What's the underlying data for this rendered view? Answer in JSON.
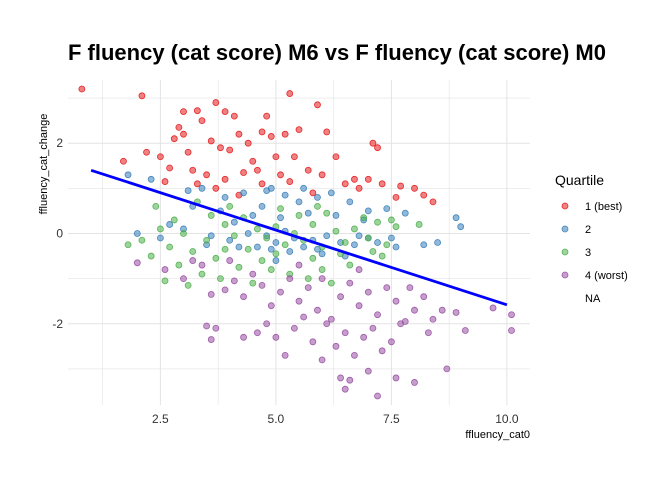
{
  "chart_data": {
    "type": "scatter",
    "title": "F fluency (cat score) M6 vs F fluency (cat score) M0",
    "xlabel": "ffluency_cat0",
    "ylabel": "ffluency_cat_change",
    "xlim": [
      0.5,
      10.5
    ],
    "ylim": [
      -3.8,
      3.4
    ],
    "xticks": [
      2.5,
      5.0,
      7.5,
      10.0
    ],
    "xtick_labels": [
      "2.5",
      "5.0",
      "7.5",
      "10.0"
    ],
    "yticks": [
      -2,
      0,
      2
    ],
    "ytick_labels": [
      "-2",
      "0",
      "2"
    ],
    "grid": true,
    "legend": {
      "title": "Quartile",
      "position": "right",
      "entries": [
        {
          "label": "1 (best)",
          "color": "#E41A1C"
        },
        {
          "label": "2",
          "color": "#377EB8"
        },
        {
          "label": "3",
          "color": "#4DAF4A"
        },
        {
          "label": "4 (worst)",
          "color": "#984EA3"
        },
        {
          "label": "NA",
          "color": null
        }
      ]
    },
    "trend_line": {
      "x": [
        1.0,
        10.0
      ],
      "y": [
        1.4,
        -1.58
      ],
      "color": "#0000FF"
    },
    "series": [
      {
        "name": "1 (best)",
        "color": "#E41A1C",
        "points": [
          [
            0.8,
            3.2
          ],
          [
            2.1,
            3.05
          ],
          [
            3.0,
            2.7
          ],
          [
            3.3,
            2.72
          ],
          [
            3.7,
            2.9
          ],
          [
            3.9,
            2.7
          ],
          [
            4.1,
            2.6
          ],
          [
            5.3,
            3.1
          ],
          [
            5.9,
            2.85
          ],
          [
            4.8,
            2.6
          ],
          [
            2.9,
            2.35
          ],
          [
            3.4,
            2.5
          ],
          [
            3.0,
            2.2
          ],
          [
            2.8,
            2.1
          ],
          [
            3.6,
            2.05
          ],
          [
            4.2,
            2.2
          ],
          [
            4.4,
            2.0
          ],
          [
            4.7,
            2.25
          ],
          [
            4.9,
            2.15
          ],
          [
            5.2,
            2.2
          ],
          [
            5.5,
            2.3
          ],
          [
            6.1,
            2.25
          ],
          [
            1.7,
            1.6
          ],
          [
            2.2,
            1.8
          ],
          [
            2.5,
            1.7
          ],
          [
            3.1,
            1.8
          ],
          [
            3.8,
            1.9
          ],
          [
            4.0,
            1.85
          ],
          [
            4.5,
            1.6
          ],
          [
            5.0,
            1.7
          ],
          [
            5.4,
            1.7
          ],
          [
            6.3,
            1.7
          ],
          [
            2.7,
            1.45
          ],
          [
            3.2,
            1.4
          ],
          [
            3.5,
            1.3
          ],
          [
            4.3,
            1.35
          ],
          [
            4.6,
            1.4
          ],
          [
            5.1,
            1.3
          ],
          [
            5.7,
            1.4
          ],
          [
            6.0,
            1.3
          ],
          [
            2.6,
            1.15
          ],
          [
            3.3,
            1.1
          ],
          [
            3.9,
            1.2
          ],
          [
            4.7,
            1.1
          ],
          [
            5.3,
            1.15
          ],
          [
            6.5,
            1.1
          ],
          [
            6.7,
            1.2
          ],
          [
            7.0,
            1.2
          ],
          [
            7.3,
            1.1
          ],
          [
            7.7,
            1.05
          ],
          [
            8.0,
            1.0
          ],
          [
            8.2,
            0.85
          ],
          [
            7.6,
            0.8
          ],
          [
            7.2,
            1.9
          ],
          [
            8.4,
            0.7
          ],
          [
            7.1,
            2.0
          ],
          [
            6.8,
            1.0
          ],
          [
            5.8,
            0.9
          ],
          [
            4.2,
            0.85
          ],
          [
            3.7,
            1.0
          ]
        ]
      },
      {
        "name": "2",
        "color": "#377EB8",
        "points": [
          [
            1.8,
            1.3
          ],
          [
            2.3,
            1.2
          ],
          [
            3.1,
            0.95
          ],
          [
            3.4,
            1.0
          ],
          [
            3.9,
            0.8
          ],
          [
            4.3,
            0.9
          ],
          [
            4.9,
            1.0
          ],
          [
            5.2,
            0.85
          ],
          [
            5.6,
            1.0
          ],
          [
            5.9,
            0.8
          ],
          [
            6.2,
            0.9
          ],
          [
            6.6,
            0.7
          ],
          [
            7.0,
            0.5
          ],
          [
            7.4,
            0.55
          ],
          [
            7.8,
            0.45
          ],
          [
            8.9,
            0.35
          ],
          [
            9.0,
            0.15
          ],
          [
            2.0,
            0.0
          ],
          [
            2.5,
            -0.1
          ],
          [
            3.0,
            0.1
          ],
          [
            3.6,
            -0.05
          ],
          [
            4.0,
            -0.15
          ],
          [
            4.4,
            0.0
          ],
          [
            4.8,
            -0.05
          ],
          [
            5.0,
            -0.2
          ],
          [
            5.2,
            0.05
          ],
          [
            5.4,
            -0.1
          ],
          [
            5.8,
            -0.15
          ],
          [
            6.1,
            -0.05
          ],
          [
            6.4,
            -0.2
          ],
          [
            6.7,
            -0.25
          ],
          [
            7.0,
            -0.1
          ],
          [
            7.2,
            -0.2
          ],
          [
            4.6,
            -0.3
          ],
          [
            4.9,
            -0.35
          ],
          [
            5.3,
            -0.4
          ],
          [
            5.6,
            -0.3
          ],
          [
            6.0,
            -0.45
          ],
          [
            6.5,
            -0.5
          ],
          [
            7.5,
            -0.1
          ],
          [
            8.2,
            -0.25
          ],
          [
            3.2,
            0.6
          ],
          [
            3.8,
            0.5
          ],
          [
            4.5,
            0.4
          ],
          [
            5.1,
            0.35
          ],
          [
            5.7,
            0.45
          ],
          [
            6.3,
            0.4
          ],
          [
            2.7,
            0.2
          ],
          [
            4.1,
            0.25
          ],
          [
            4.7,
            0.6
          ],
          [
            5.5,
            0.7
          ],
          [
            6.9,
            0.3
          ],
          [
            3.5,
            -0.25
          ],
          [
            4.2,
            -0.3
          ],
          [
            5.9,
            -0.35
          ],
          [
            6.8,
            -0.05
          ],
          [
            7.6,
            -0.3
          ],
          [
            8.5,
            -0.2
          ],
          [
            4.8,
            0.95
          ],
          [
            5.0,
            -0.6
          ]
        ]
      },
      {
        "name": "3",
        "color": "#4DAF4A",
        "points": [
          [
            1.8,
            -0.25
          ],
          [
            2.1,
            -0.15
          ],
          [
            2.5,
            0.1
          ],
          [
            2.7,
            -0.3
          ],
          [
            3.0,
            0.0
          ],
          [
            3.2,
            -0.4
          ],
          [
            3.5,
            -0.15
          ],
          [
            3.9,
            0.2
          ],
          [
            4.1,
            -0.05
          ],
          [
            4.4,
            -0.35
          ],
          [
            4.6,
            0.1
          ],
          [
            4.8,
            -0.1
          ],
          [
            5.0,
            0.15
          ],
          [
            5.2,
            -0.25
          ],
          [
            5.4,
            0.0
          ],
          [
            5.6,
            -0.15
          ],
          [
            5.8,
            0.2
          ],
          [
            6.0,
            -0.3
          ],
          [
            6.3,
            0.05
          ],
          [
            6.5,
            -0.2
          ],
          [
            6.7,
            0.1
          ],
          [
            7.0,
            -0.1
          ],
          [
            7.2,
            0.25
          ],
          [
            7.4,
            -0.25
          ],
          [
            7.6,
            0.15
          ],
          [
            8.1,
            0.2
          ],
          [
            2.9,
            -0.7
          ],
          [
            3.4,
            -0.9
          ],
          [
            3.8,
            -1.0
          ],
          [
            4.2,
            -0.75
          ],
          [
            4.5,
            -1.1
          ],
          [
            4.9,
            -0.8
          ],
          [
            5.3,
            -0.9
          ],
          [
            5.7,
            -1.0
          ],
          [
            6.0,
            -0.8
          ],
          [
            6.6,
            -0.7
          ],
          [
            2.6,
            -1.05
          ],
          [
            3.1,
            -1.15
          ],
          [
            2.8,
            0.3
          ],
          [
            3.6,
            0.4
          ],
          [
            4.3,
            0.35
          ],
          [
            5.5,
            0.4
          ],
          [
            6.1,
            0.45
          ],
          [
            6.9,
            0.35
          ],
          [
            7.5,
            0.3
          ],
          [
            2.4,
            0.6
          ],
          [
            3.3,
            0.7
          ],
          [
            4.0,
            0.6
          ],
          [
            5.1,
            0.55
          ],
          [
            5.9,
            0.6
          ],
          [
            3.7,
            -0.55
          ],
          [
            4.7,
            -0.6
          ],
          [
            5.8,
            -0.55
          ],
          [
            6.4,
            -0.45
          ],
          [
            7.3,
            -0.5
          ],
          [
            2.3,
            -0.5
          ],
          [
            3.9,
            -0.35
          ],
          [
            5.0,
            -0.45
          ],
          [
            6.2,
            -1.1
          ],
          [
            7.1,
            -0.4
          ]
        ]
      },
      {
        "name": "4 (worst)",
        "color": "#984EA3",
        "points": [
          [
            2.0,
            -0.65
          ],
          [
            2.6,
            -0.8
          ],
          [
            3.0,
            -1.0
          ],
          [
            3.4,
            -0.7
          ],
          [
            3.6,
            -1.35
          ],
          [
            3.9,
            -1.25
          ],
          [
            4.1,
            -1.05
          ],
          [
            4.3,
            -1.4
          ],
          [
            4.5,
            -0.9
          ],
          [
            4.7,
            -1.15
          ],
          [
            4.9,
            -1.6
          ],
          [
            5.1,
            -1.3
          ],
          [
            5.3,
            -1.0
          ],
          [
            5.5,
            -1.5
          ],
          [
            5.7,
            -1.2
          ],
          [
            5.9,
            -1.7
          ],
          [
            6.0,
            -1.0
          ],
          [
            6.2,
            -1.9
          ],
          [
            6.4,
            -1.4
          ],
          [
            6.6,
            -1.1
          ],
          [
            6.8,
            -1.6
          ],
          [
            7.0,
            -1.3
          ],
          [
            7.2,
            -1.8
          ],
          [
            7.4,
            -1.2
          ],
          [
            7.6,
            -1.5
          ],
          [
            7.8,
            -1.95
          ],
          [
            8.0,
            -1.7
          ],
          [
            8.2,
            -1.4
          ],
          [
            8.4,
            -1.9
          ],
          [
            8.6,
            -1.7
          ],
          [
            8.9,
            -1.75
          ],
          [
            9.1,
            -2.15
          ],
          [
            9.7,
            -1.65
          ],
          [
            10.1,
            -1.8
          ],
          [
            10.1,
            -2.15
          ],
          [
            3.5,
            -2.05
          ],
          [
            3.7,
            -2.1
          ],
          [
            4.3,
            -2.3
          ],
          [
            4.8,
            -2.0
          ],
          [
            5.0,
            -2.3
          ],
          [
            5.4,
            -2.1
          ],
          [
            5.8,
            -2.4
          ],
          [
            6.1,
            -2.0
          ],
          [
            6.3,
            -2.5
          ],
          [
            6.5,
            -2.2
          ],
          [
            6.7,
            -2.7
          ],
          [
            6.9,
            -2.3
          ],
          [
            7.1,
            -2.1
          ],
          [
            7.3,
            -2.6
          ],
          [
            7.5,
            -2.4
          ],
          [
            3.6,
            -2.35
          ],
          [
            5.2,
            -2.7
          ],
          [
            6.0,
            -2.8
          ],
          [
            6.4,
            -3.2
          ],
          [
            6.6,
            -3.25
          ],
          [
            7.0,
            -3.05
          ],
          [
            7.2,
            -3.6
          ],
          [
            7.6,
            -3.2
          ],
          [
            8.0,
            -3.3
          ],
          [
            8.7,
            -3.0
          ],
          [
            6.5,
            -3.45
          ],
          [
            4.6,
            -2.2
          ],
          [
            5.6,
            -1.85
          ],
          [
            6.8,
            -0.8
          ],
          [
            7.9,
            -1.2
          ],
          [
            4.0,
            -0.6
          ],
          [
            5.5,
            -0.7
          ],
          [
            3.2,
            -0.6
          ],
          [
            8.3,
            -2.2
          ],
          [
            7.7,
            -2.0
          ]
        ]
      }
    ]
  }
}
